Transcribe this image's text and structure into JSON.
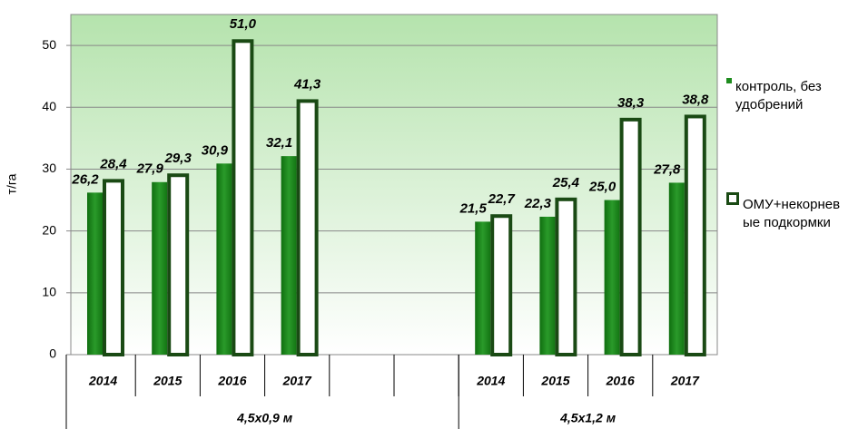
{
  "chart_data": {
    "type": "bar",
    "y_label": "т/га",
    "categories": [
      "2014",
      "2015",
      "2016",
      "2017",
      null,
      null,
      "2014",
      "2015",
      "2016",
      "2017"
    ],
    "groups": [
      "4,5x0,9 м",
      "4,5x1,2 м"
    ],
    "series": [
      {
        "name": "контроль, без удобрений",
        "color": "#1e8c1e",
        "values": [
          26.2,
          27.9,
          30.9,
          32.1,
          null,
          null,
          21.5,
          22.3,
          25.0,
          27.8
        ],
        "value_labels": [
          "26,2",
          "27,9",
          "30,9",
          "32,1",
          null,
          null,
          "21,5",
          "22,3",
          "25,0",
          "27,8"
        ]
      },
      {
        "name": "ОМУ+некорневые подкормки",
        "color": "#1a4a14",
        "values": [
          28.4,
          29.3,
          51.0,
          41.3,
          null,
          null,
          22.7,
          25.4,
          38.3,
          38.8
        ],
        "value_labels": [
          "28,4",
          "29,3",
          "51,0",
          "41,3",
          null,
          null,
          "22,7",
          "25,4",
          "38,3",
          "38,8"
        ]
      }
    ],
    "ylim": [
      0,
      55
    ],
    "yticks": [
      0,
      10,
      20,
      30,
      40,
      50
    ],
    "grid": true
  }
}
